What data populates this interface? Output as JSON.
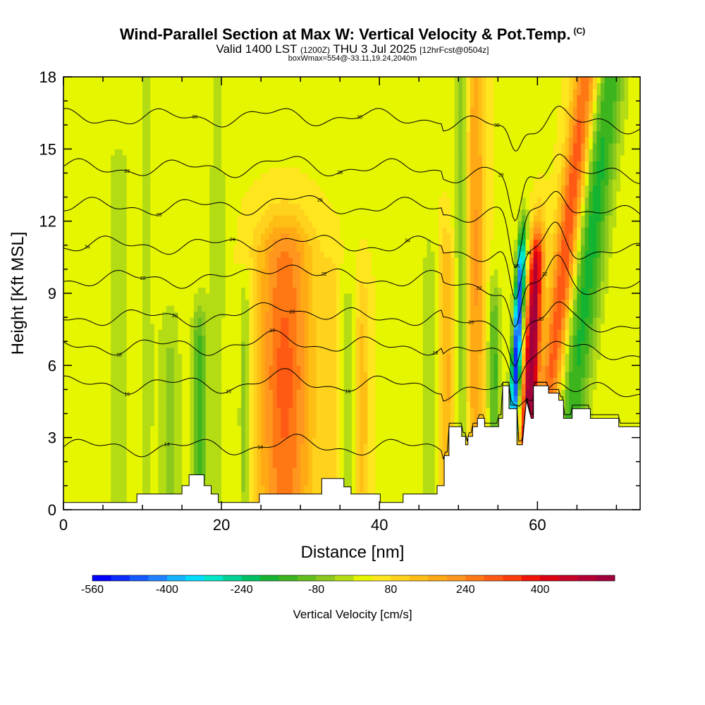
{
  "header": {
    "title": "Wind-Parallel Section at Max W: Vertical Velocity & Pot.Temp.",
    "copyright": "(C)",
    "valid_main": "Valid 1400 LST",
    "valid_utc": "(1200Z)",
    "valid_date": "THU 3 Jul 2025",
    "forecast": "[12hrFcst@0504z]",
    "box_info": "boxWmax=554@-33.11,19.24,2040m"
  },
  "chart_data": {
    "type": "heatmap",
    "title": "Wind-Parallel Section at Max W: Vertical Velocity & Pot.Temp.",
    "xlabel": "Distance [nm]",
    "ylabel": "Height [Kft MSL]",
    "xlim": [
      0,
      73
    ],
    "ylim": [
      0,
      18
    ],
    "x_ticks": [
      0,
      20,
      40,
      60
    ],
    "y_ticks": [
      0,
      3,
      6,
      9,
      12,
      15,
      18
    ],
    "colorbar": {
      "label": "Vertical Velocity [cm/s]",
      "min": -560,
      "max": 560,
      "step": 40,
      "tick_values": [
        -560,
        -400,
        -240,
        -80,
        80,
        240,
        400
      ],
      "colors": [
        "#0000ff",
        "#0a2cff",
        "#145aff",
        "#1e82ff",
        "#14b4ff",
        "#00dcff",
        "#00e6c8",
        "#00d296",
        "#00c064",
        "#14b432",
        "#3cb41e",
        "#64be1e",
        "#8cc81e",
        "#b4dc14",
        "#e6f500",
        "#ffe61e",
        "#ffd21e",
        "#ffbe14",
        "#ffaa14",
        "#ff961e",
        "#ff7814",
        "#ff5a14",
        "#ff3c0a",
        "#f0140a",
        "#dc0014",
        "#c80028",
        "#b40032",
        "#a0003c"
      ]
    },
    "terrain_profile": {
      "x_nm": [
        0,
        9.3,
        9.3,
        15,
        15,
        15.9,
        15.9,
        17.8,
        17.8,
        18.7,
        18.7,
        19.6,
        19.6,
        24.8,
        24.8,
        32.7,
        32.7,
        35.5,
        35.5,
        36.4,
        36.4,
        40.1,
        40.1,
        43,
        43,
        47.3,
        47.3,
        48.2,
        48.2,
        48.8,
        48.8,
        50.4,
        50.4,
        50.9,
        50.9,
        51.2,
        51.2,
        51.8,
        51.8,
        52.4,
        52.4,
        53.3,
        53.3,
        55.1,
        55.1,
        55.6,
        55.6,
        56.4,
        56.4,
        57.4,
        57.4,
        58.1,
        58.6,
        58.6,
        59.2,
        59.5,
        59.5,
        61.4,
        61.4,
        62.7,
        62.7,
        63.3,
        63.3,
        64.4,
        64.4,
        65.7,
        65.7,
        66.7,
        66.7,
        70.3,
        70.3,
        73
      ],
      "h_kft": [
        0.3,
        0.3,
        0.65,
        0.65,
        1.0,
        1.0,
        1.45,
        1.45,
        1.0,
        1.0,
        0.65,
        0.65,
        0.3,
        0.3,
        0.65,
        0.65,
        1.3,
        1.3,
        0.95,
        0.95,
        0.65,
        0.65,
        0.3,
        0.3,
        0.65,
        0.65,
        1.0,
        1.0,
        2.25,
        2.25,
        3.45,
        3.45,
        3.05,
        3.05,
        2.7,
        2.7,
        3.05,
        3.05,
        3.45,
        3.45,
        3.8,
        3.8,
        3.45,
        3.45,
        3.8,
        3.8,
        5.15,
        5.15,
        4.2,
        4.2,
        2.7,
        2.7,
        4.55,
        4.55,
        3.8,
        3.8,
        5.15,
        5.15,
        4.85,
        4.85,
        4.55,
        4.55,
        3.8,
        3.8,
        4.2,
        4.2,
        4.2,
        4.2,
        3.8,
        3.8,
        3.45,
        3.45
      ]
    },
    "updraft_features": [
      {
        "x_nm": 7,
        "width_nm": 1.6,
        "base_kft": 0,
        "top_kft": 14,
        "w_cms": -60
      },
      {
        "x_nm": 10.5,
        "width_nm": 1.2,
        "base_kft": 0,
        "top_kft": 18,
        "w_cms": -45
      },
      {
        "x_nm": 13.5,
        "width_nm": 1.4,
        "base_kft": 0,
        "top_kft": 7,
        "w_cms": -90
      },
      {
        "x_nm": 17.2,
        "width_nm": 0.9,
        "base_kft": 1.3,
        "top_kft": 7,
        "w_cms": -190
      },
      {
        "x_nm": 19.5,
        "width_nm": 1.4,
        "base_kft": 0,
        "top_kft": 18,
        "w_cms": -50
      },
      {
        "x_nm": 23,
        "width_nm": 0.8,
        "base_kft": 0.3,
        "top_kft": 8,
        "w_cms": -130
      },
      {
        "x_nm": 28,
        "width_nm": 3.6,
        "base_kft": 0.5,
        "top_kft": 10.5,
        "w_cms": 260
      },
      {
        "x_nm": 34,
        "width_nm": 1.2,
        "base_kft": 1.0,
        "top_kft": 9,
        "w_cms": 70
      },
      {
        "x_nm": 36,
        "width_nm": 1.2,
        "base_kft": 0.8,
        "top_kft": 8,
        "w_cms": -80
      },
      {
        "x_nm": 37.8,
        "width_nm": 1.0,
        "base_kft": 0.5,
        "top_kft": 8,
        "w_cms": 110
      },
      {
        "x_nm": 46.5,
        "width_nm": 1.2,
        "base_kft": 0.5,
        "top_kft": 10,
        "w_cms": -70
      },
      {
        "x_nm": 48.5,
        "width_nm": 1.2,
        "base_kft": 1.0,
        "top_kft": 10,
        "w_cms": 140
      },
      {
        "x_nm": 50.5,
        "width_nm": 1.0,
        "base_kft": 3.2,
        "top_kft": 18,
        "w_cms": -150
      },
      {
        "x_nm": 52,
        "width_nm": 1.4,
        "base_kft": 3.0,
        "top_kft": 18,
        "w_cms": 180
      },
      {
        "x_nm": 54.5,
        "width_nm": 0.8,
        "base_kft": 3.5,
        "top_kft": 8,
        "w_cms": -180
      },
      {
        "x_nm": 57.3,
        "width_nm": 0.6,
        "base_kft": 3.5,
        "top_kft": 10,
        "w_cms": -554
      },
      {
        "x_nm": 59.2,
        "width_nm": 0.9,
        "base_kft": 2.7,
        "top_kft": 10,
        "w_cms": 554
      },
      {
        "x_nm": 62,
        "width_nm": 1.5,
        "base_kft": 4.0,
        "top_kft": 18,
        "w_cms": 300
      },
      {
        "x_nm": 65,
        "width_nm": 2.0,
        "base_kft": 3.8,
        "top_kft": 18,
        "w_cms": -220
      }
    ],
    "theta_contours": [
      {
        "label": "14",
        "labels_at_nm": [
          13,
          25
        ],
        "base_kft": 2.6,
        "bump": 0.5
      },
      {
        "label": "16",
        "labels_at_nm": [
          8,
          21,
          36
        ],
        "base_kft": 5.2,
        "bump": 0.8
      },
      {
        "label": "18",
        "labels_at_nm": [
          7,
          26.5,
          47
        ],
        "base_kft": 6.8,
        "bump": 1.0
      },
      {
        "label": "20",
        "labels_at_nm": [
          14,
          29,
          51.5,
          60.5
        ],
        "base_kft": 8.0,
        "bump": 1.6
      },
      {
        "label": "22",
        "labels_at_nm": [
          10,
          33,
          52.5,
          61
        ],
        "base_kft": 9.6,
        "bump": 2.0
      },
      {
        "label": "24",
        "labels_at_nm": [
          3,
          21.5,
          43.5,
          59
        ],
        "base_kft": 11.0,
        "bump": 2.4
      },
      {
        "label": "26",
        "labels_at_nm": [
          12,
          32.5,
          57.5
        ],
        "base_kft": 12.6,
        "bump": 2.6
      },
      {
        "label": "28",
        "labels_at_nm": [
          8,
          35,
          55.5
        ],
        "base_kft": 14.2,
        "bump": 2.2
      },
      {
        "label": "30",
        "labels_at_nm": [
          16.5,
          37.5,
          54.8
        ],
        "base_kft": 16.3,
        "bump": 1.2
      }
    ]
  }
}
